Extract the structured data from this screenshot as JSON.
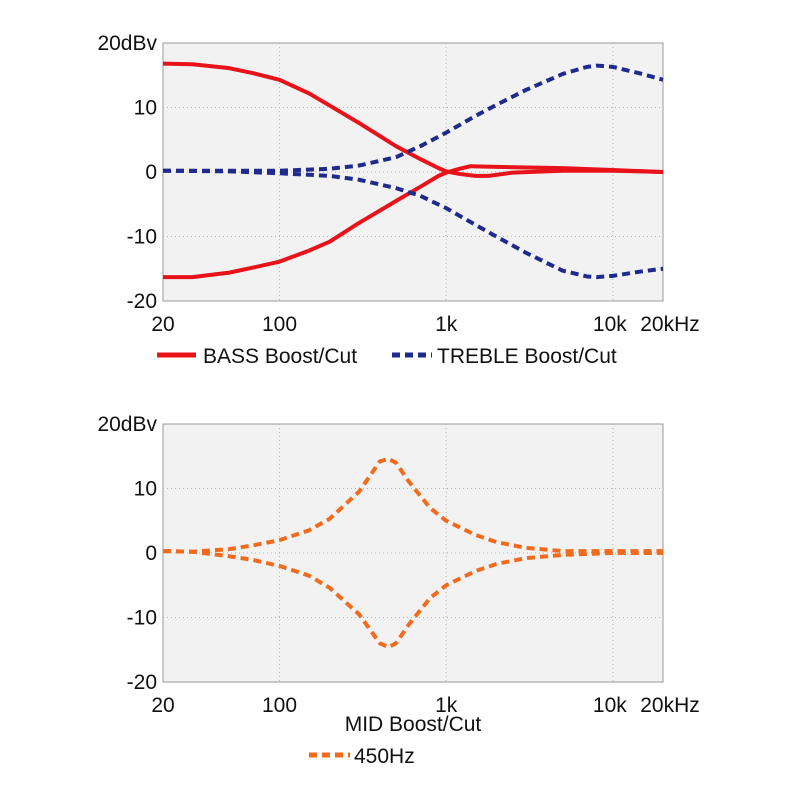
{
  "chart_data": [
    {
      "type": "line",
      "x_scale": "log",
      "xlim": [
        20,
        20000
      ],
      "ylim": [
        -20,
        20
      ],
      "grid": true,
      "x_ticks": [
        {
          "value": 20,
          "label": "20"
        },
        {
          "value": 100,
          "label": "100"
        },
        {
          "value": 1000,
          "label": "1k"
        },
        {
          "value": 10000,
          "label": "10k"
        },
        {
          "value": 20000,
          "label": "20kHz"
        }
      ],
      "y_ticks": [
        {
          "value": 20,
          "label": "20dBv"
        },
        {
          "value": 10,
          "label": "10"
        },
        {
          "value": 0,
          "label": "0"
        },
        {
          "value": -10,
          "label": "-10"
        },
        {
          "value": -20,
          "label": "-20"
        }
      ],
      "legend": [
        {
          "label": "BASS Boost/Cut",
          "color": "#e8121b",
          "dashed": false
        },
        {
          "label": "TREBLE Boost/Cut",
          "color": "#1f2a8c",
          "dashed": true
        }
      ],
      "series": [
        {
          "group": "BASS Boost/Cut",
          "color": "#e8121b",
          "dashed": false,
          "points": [
            [
              20,
              16.8
            ],
            [
              30,
              16.7
            ],
            [
              50,
              16.1
            ],
            [
              70,
              15.3
            ],
            [
              100,
              14.3
            ],
            [
              150,
              12.2
            ],
            [
              200,
              10.3
            ],
            [
              300,
              7.6
            ],
            [
              500,
              4.0
            ],
            [
              700,
              2.0
            ],
            [
              900,
              0.6
            ],
            [
              1000,
              0.1
            ],
            [
              1200,
              -0.3
            ],
            [
              1500,
              -0.6
            ],
            [
              1800,
              -0.6
            ],
            [
              2500,
              -0.1
            ],
            [
              5000,
              0.2
            ],
            [
              10000,
              0.2
            ],
            [
              20000,
              0.0
            ]
          ]
        },
        {
          "group": "BASS Boost/Cut",
          "color": "#e8121b",
          "dashed": false,
          "points": [
            [
              20,
              -16.3
            ],
            [
              30,
              -16.3
            ],
            [
              50,
              -15.6
            ],
            [
              70,
              -14.8
            ],
            [
              100,
              -13.9
            ],
            [
              150,
              -12.2
            ],
            [
              200,
              -10.8
            ],
            [
              300,
              -7.9
            ],
            [
              500,
              -4.5
            ],
            [
              700,
              -2.3
            ],
            [
              900,
              -0.6
            ],
            [
              1000,
              -0.1
            ],
            [
              1200,
              0.5
            ],
            [
              1400,
              0.9
            ],
            [
              2000,
              0.8
            ],
            [
              5000,
              0.6
            ],
            [
              10000,
              0.3
            ],
            [
              20000,
              0.0
            ]
          ]
        },
        {
          "group": "TREBLE Boost/Cut",
          "color": "#1f2a8c",
          "dashed": true,
          "points": [
            [
              20,
              0.2
            ],
            [
              50,
              0.2
            ],
            [
              100,
              0.2
            ],
            [
              200,
              0.5
            ],
            [
              300,
              1.0
            ],
            [
              500,
              2.3
            ],
            [
              700,
              4.0
            ],
            [
              1000,
              6.1
            ],
            [
              1500,
              8.7
            ],
            [
              2000,
              10.4
            ],
            [
              3000,
              12.7
            ],
            [
              5000,
              15.2
            ],
            [
              7000,
              16.3
            ],
            [
              8000,
              16.5
            ],
            [
              10000,
              16.3
            ],
            [
              15000,
              15.2
            ],
            [
              20000,
              14.3
            ]
          ]
        },
        {
          "group": "TREBLE Boost/Cut",
          "color": "#1f2a8c",
          "dashed": true,
          "points": [
            [
              20,
              0.2
            ],
            [
              50,
              0.1
            ],
            [
              100,
              -0.2
            ],
            [
              200,
              -0.6
            ],
            [
              300,
              -1.2
            ],
            [
              500,
              -2.5
            ],
            [
              700,
              -3.7
            ],
            [
              1000,
              -5.6
            ],
            [
              1500,
              -8.2
            ],
            [
              2000,
              -10.0
            ],
            [
              3000,
              -12.5
            ],
            [
              5000,
              -15.3
            ],
            [
              7000,
              -16.2
            ],
            [
              8000,
              -16.3
            ],
            [
              10000,
              -16.1
            ],
            [
              15000,
              -15.4
            ],
            [
              20000,
              -15.0
            ]
          ]
        }
      ]
    },
    {
      "type": "line",
      "x_scale": "log",
      "xlim": [
        20,
        20000
      ],
      "ylim": [
        -20,
        20
      ],
      "grid": true,
      "title_below": "MID Boost/Cut",
      "x_ticks": [
        {
          "value": 20,
          "label": "20"
        },
        {
          "value": 100,
          "label": "100"
        },
        {
          "value": 1000,
          "label": "1k"
        },
        {
          "value": 10000,
          "label": "10k"
        },
        {
          "value": 20000,
          "label": "20kHz"
        }
      ],
      "y_ticks": [
        {
          "value": 20,
          "label": "20dBv"
        },
        {
          "value": 10,
          "label": "10"
        },
        {
          "value": 0,
          "label": "0"
        },
        {
          "value": -10,
          "label": "-10"
        },
        {
          "value": -20,
          "label": "-20"
        }
      ],
      "legend": [
        {
          "label": "450Hz",
          "color": "#f26b1d",
          "dashed": true
        }
      ],
      "series": [
        {
          "group": "450Hz",
          "color": "#f26b1d",
          "dashed": true,
          "points": [
            [
              20,
              0.3
            ],
            [
              30,
              0.2
            ],
            [
              50,
              0.6
            ],
            [
              70,
              1.2
            ],
            [
              100,
              2.0
            ],
            [
              150,
              3.5
            ],
            [
              200,
              5.3
            ],
            [
              300,
              9.5
            ],
            [
              400,
              14.2
            ],
            [
              450,
              14.6
            ],
            [
              500,
              14.0
            ],
            [
              600,
              11.0
            ],
            [
              800,
              7.0
            ],
            [
              1000,
              5.0
            ],
            [
              1500,
              2.8
            ],
            [
              2000,
              1.7
            ],
            [
              3000,
              0.8
            ],
            [
              5000,
              0.3
            ],
            [
              10000,
              0.3
            ],
            [
              20000,
              0.3
            ]
          ]
        },
        {
          "group": "450Hz",
          "color": "#f26b1d",
          "dashed": true,
          "points": [
            [
              20,
              0.3
            ],
            [
              30,
              0.2
            ],
            [
              50,
              -0.5
            ],
            [
              70,
              -1.1
            ],
            [
              100,
              -2.0
            ],
            [
              150,
              -3.5
            ],
            [
              200,
              -5.4
            ],
            [
              300,
              -9.5
            ],
            [
              400,
              -14.0
            ],
            [
              450,
              -14.6
            ],
            [
              500,
              -14.0
            ],
            [
              600,
              -11.0
            ],
            [
              800,
              -7.0
            ],
            [
              1000,
              -5.0
            ],
            [
              1500,
              -2.8
            ],
            [
              2000,
              -1.7
            ],
            [
              3000,
              -0.8
            ],
            [
              5000,
              -0.3
            ],
            [
              10000,
              0.0
            ],
            [
              20000,
              0.0
            ]
          ]
        }
      ]
    }
  ]
}
